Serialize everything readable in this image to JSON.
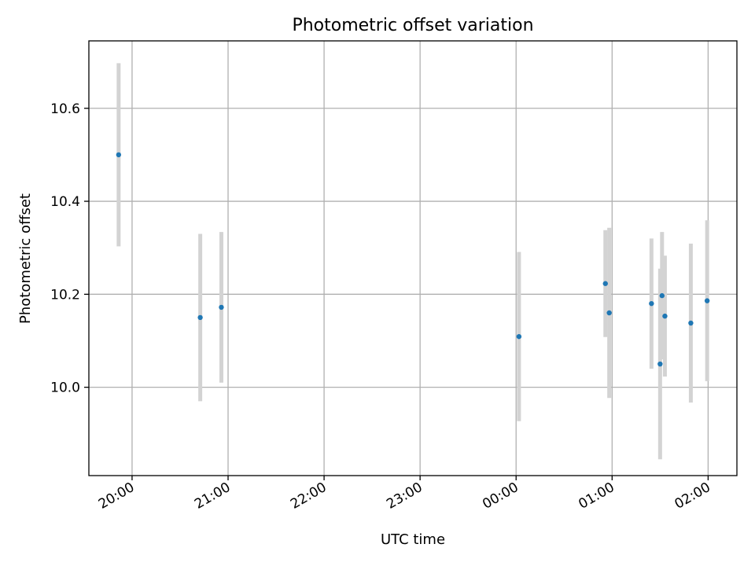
{
  "chart_data": {
    "type": "scatter",
    "title": "Photometric offset variation",
    "xlabel": "UTC time",
    "ylabel": "Photometric offset",
    "xlim_hours": [
      19.55,
      26.3
    ],
    "ylim": [
      9.81,
      10.745
    ],
    "grid": true,
    "x_ticks": [
      {
        "hours": 20,
        "label": "20:00"
      },
      {
        "hours": 21,
        "label": "21:00"
      },
      {
        "hours": 22,
        "label": "22:00"
      },
      {
        "hours": 23,
        "label": "23:00"
      },
      {
        "hours": 24,
        "label": "00:00"
      },
      {
        "hours": 25,
        "label": "01:00"
      },
      {
        "hours": 26,
        "label": "02:00"
      }
    ],
    "y_ticks": [
      {
        "value": 10.0,
        "label": "10.0"
      },
      {
        "value": 10.2,
        "label": "10.2"
      },
      {
        "value": 10.4,
        "label": "10.4"
      },
      {
        "value": 10.6,
        "label": "10.6"
      }
    ],
    "points": [
      {
        "time": "19:52",
        "hours": 19.86,
        "y": 10.5,
        "err": 0.197
      },
      {
        "time": "20:43",
        "hours": 20.71,
        "y": 10.15,
        "err": 0.18
      },
      {
        "time": "20:56",
        "hours": 20.93,
        "y": 10.172,
        "err": 0.162
      },
      {
        "time": "00:02",
        "hours": 24.03,
        "y": 10.109,
        "err": 0.182
      },
      {
        "time": "00:55",
        "hours": 24.93,
        "y": 10.223,
        "err": 0.115
      },
      {
        "time": "00:58",
        "hours": 24.97,
        "y": 10.16,
        "err": 0.183
      },
      {
        "time": "01:24",
        "hours": 25.41,
        "y": 10.18,
        "err": 0.14
      },
      {
        "time": "01:30",
        "hours": 25.5,
        "y": 10.05,
        "err": 0.205
      },
      {
        "time": "01:31",
        "hours": 25.52,
        "y": 10.197,
        "err": 0.137
      },
      {
        "time": "01:33",
        "hours": 25.55,
        "y": 10.153,
        "err": 0.13
      },
      {
        "time": "01:49",
        "hours": 25.82,
        "y": 10.138,
        "err": 0.171
      },
      {
        "time": "01:59",
        "hours": 25.99,
        "y": 10.186,
        "err": 0.173
      }
    ]
  }
}
